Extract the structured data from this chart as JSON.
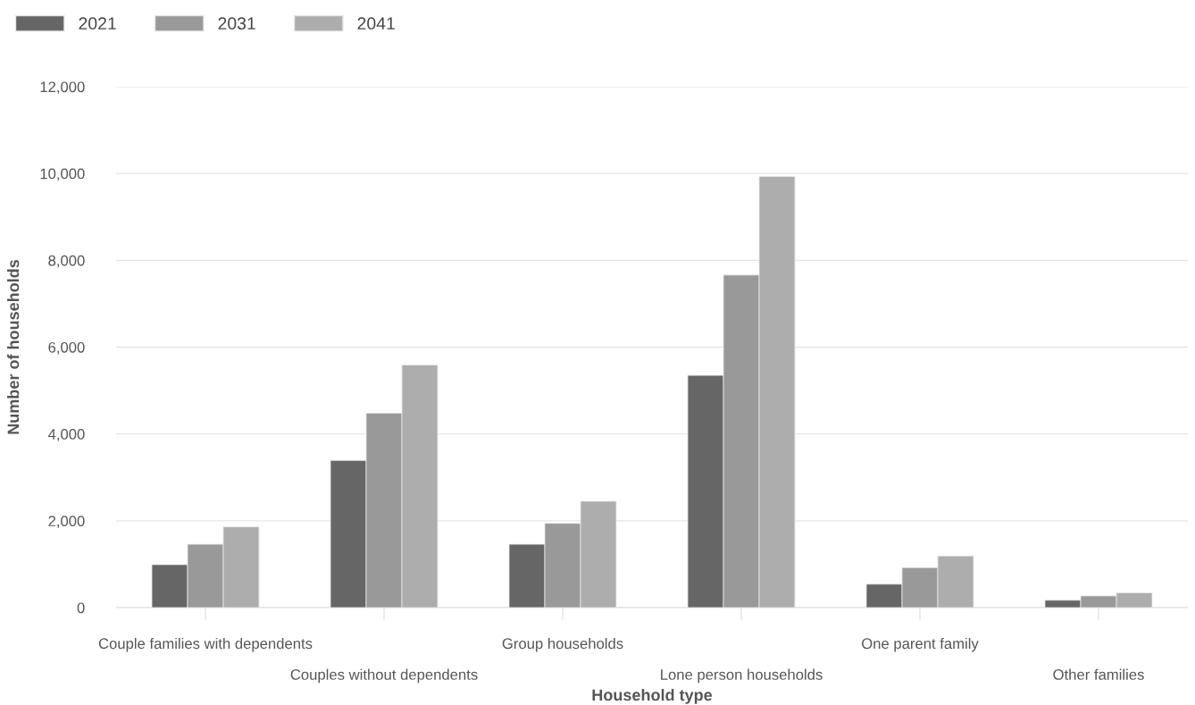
{
  "chart_data": {
    "type": "bar",
    "xlabel": "Household type",
    "ylabel": "Number of households",
    "categories": [
      "Couple families with dependents",
      "Couples without dependents",
      "Group households",
      "Lone person households",
      "One parent family",
      "Other families"
    ],
    "series": [
      {
        "name": "2021",
        "color": "#666666",
        "values": [
          990,
          3390,
          1460,
          5350,
          540,
          170
        ]
      },
      {
        "name": "2031",
        "color": "#999999",
        "values": [
          1460,
          4480,
          1940,
          7660,
          920,
          270
        ]
      },
      {
        "name": "2041",
        "color": "#adadad",
        "values": [
          1860,
          5590,
          2450,
          9930,
          1190,
          340
        ]
      }
    ],
    "ylim": [
      0,
      12000
    ],
    "yticks": [
      {
        "value": 0,
        "label": "0"
      },
      {
        "value": 2000,
        "label": "2,000"
      },
      {
        "value": 4000,
        "label": "4,000"
      },
      {
        "value": 6000,
        "label": "6,000"
      },
      {
        "value": 8000,
        "label": "8,000"
      },
      {
        "value": 10000,
        "label": "10,000"
      },
      {
        "value": 12000,
        "label": "12,000"
      }
    ],
    "grid": "y",
    "legend": "top left"
  }
}
